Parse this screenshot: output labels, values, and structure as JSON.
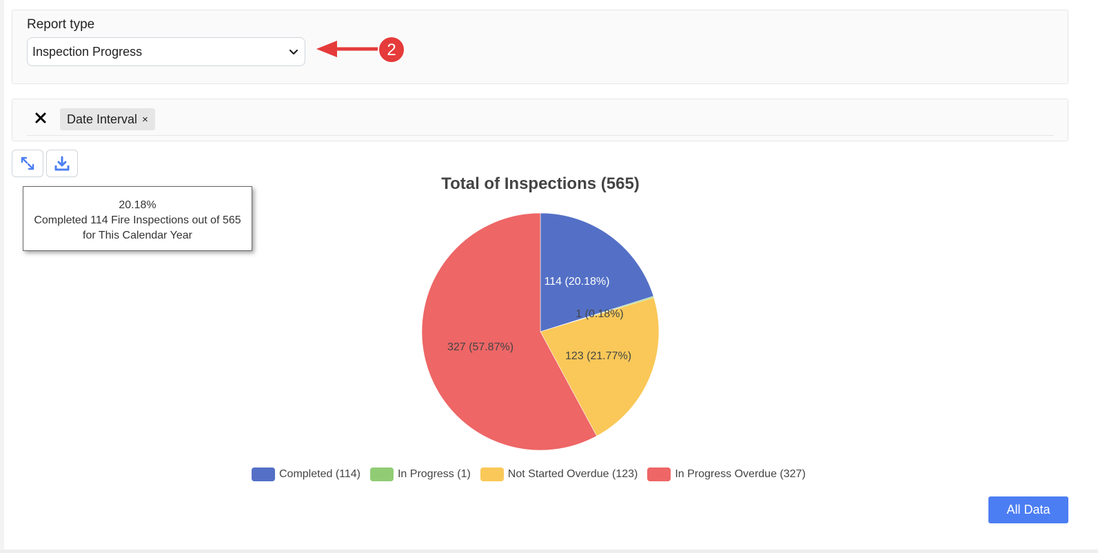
{
  "report": {
    "label": "Report type",
    "selected": "Inspection Progress"
  },
  "annotation": {
    "step_number": "2",
    "color": "#e53b3b"
  },
  "filters": {
    "chips": [
      {
        "label": "Date Interval",
        "remove_glyph": "×"
      }
    ]
  },
  "toolbar": {
    "expand_icon": "expand-icon",
    "download_icon": "download-icon"
  },
  "tooltip": {
    "line1": "20.18%",
    "line2": "Completed 114 Fire Inspections out of 565",
    "line3": "for This Calendar Year"
  },
  "chart_data": {
    "type": "pie",
    "title": "Total of Inspections (565)",
    "total": 565,
    "slices": [
      {
        "label": "Completed (114)",
        "value": 114,
        "data_label": "114 (20.18%)",
        "color": "#5470c6"
      },
      {
        "label": "In Progress (1)",
        "value": 1,
        "data_label": "1 (0.18%)",
        "color": "#91cc75"
      },
      {
        "label": "Not Started Overdue (123)",
        "value": 123,
        "data_label": "123 (21.77%)",
        "color": "#fac858"
      },
      {
        "label": "In Progress Overdue (327)",
        "value": 327,
        "data_label": "327 (57.87%)",
        "color": "#ee6666"
      }
    ],
    "legend_position": "bottom"
  },
  "footer": {
    "all_data_label": "All Data"
  }
}
